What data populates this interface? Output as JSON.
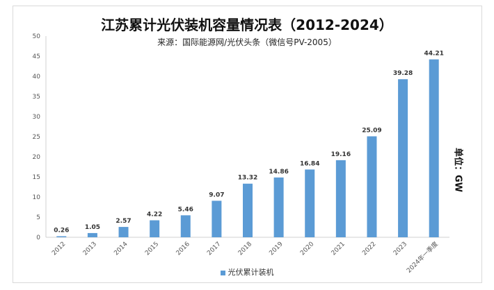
{
  "chart_data": {
    "type": "bar",
    "title": "江苏累计光伏装机容量情况表（2012-2024）",
    "subtitle": "来源：国际能源网/光伏头条（微信号PV-2005）",
    "unit_label": "单位：GW",
    "categories": [
      "2012",
      "2013",
      "2014",
      "2015",
      "2016",
      "2017",
      "2018",
      "2019",
      "2020",
      "2021",
      "2022",
      "2023",
      "2024年一季度"
    ],
    "series": [
      {
        "name": "光伏累计装机",
        "values": [
          0.26,
          1.05,
          2.57,
          4.22,
          5.46,
          9.07,
          13.32,
          14.86,
          16.84,
          19.16,
          25.09,
          39.28,
          44.21
        ]
      }
    ],
    "ylim": [
      0,
      50
    ],
    "yticks": [
      0,
      5,
      10,
      15,
      20,
      25,
      30,
      35,
      40,
      45,
      50
    ],
    "grid": false,
    "legend": "bottom",
    "bar_color": "#5b9bd5"
  }
}
